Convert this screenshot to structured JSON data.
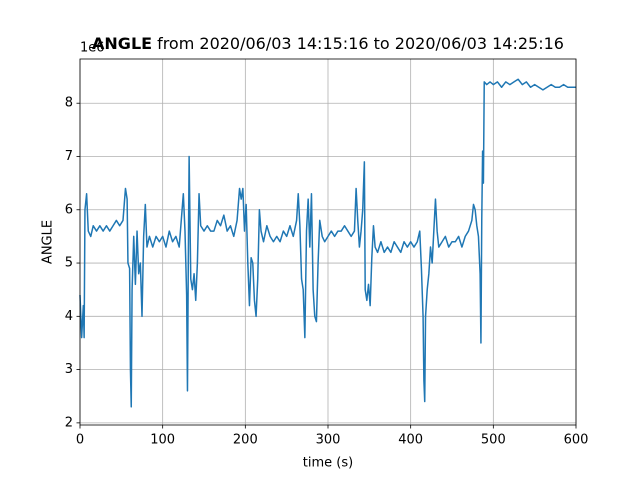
{
  "chart_data": {
    "type": "line",
    "title": [
      "ANGLE",
      "from 2020/06/03 14:15:16 to 2020/06/03 14:25:16"
    ],
    "y_offset_label": "1e6",
    "xlabel": "time (s)",
    "ylabel": "ANGLE",
    "xlim": [
      0,
      600
    ],
    "xticks": [
      0,
      100,
      200,
      300,
      400,
      500,
      600
    ],
    "ylim": [
      1.96,
      8.83
    ],
    "yticks": [
      2,
      3,
      4,
      5,
      6,
      7,
      8
    ],
    "grid": true,
    "x": [
      0,
      2,
      4,
      5,
      6,
      8,
      10,
      13,
      16,
      20,
      24,
      28,
      32,
      36,
      40,
      44,
      48,
      52,
      55,
      57,
      58,
      60,
      61,
      62,
      63,
      65,
      67,
      69,
      71,
      73,
      75,
      77,
      79,
      81,
      84,
      88,
      92,
      96,
      100,
      104,
      108,
      112,
      116,
      120,
      123,
      125,
      127,
      129,
      130,
      131,
      132,
      134,
      136,
      138,
      140,
      142,
      144,
      146,
      150,
      154,
      158,
      162,
      166,
      170,
      174,
      178,
      182,
      186,
      190,
      193,
      195,
      197,
      199,
      201,
      203,
      205,
      207,
      209,
      211,
      213,
      215,
      217,
      219,
      222,
      226,
      230,
      234,
      238,
      242,
      246,
      250,
      254,
      258,
      262,
      264,
      266,
      268,
      270,
      272,
      274,
      276,
      278,
      280,
      282,
      284,
      286,
      288,
      290,
      293,
      296,
      300,
      304,
      308,
      312,
      316,
      320,
      324,
      328,
      332,
      334,
      336,
      338,
      340,
      342,
      344,
      345,
      347,
      349,
      351,
      353,
      355,
      357,
      360,
      364,
      368,
      372,
      376,
      380,
      384,
      388,
      392,
      396,
      400,
      404,
      408,
      411,
      413,
      415,
      416,
      417,
      418,
      420,
      422,
      424,
      426,
      428,
      430,
      432,
      434,
      438,
      442,
      446,
      450,
      454,
      458,
      462,
      466,
      470,
      474,
      476,
      478,
      480,
      482,
      484,
      485,
      486,
      487,
      488,
      489,
      492,
      496,
      500,
      505,
      510,
      515,
      520,
      525,
      530,
      535,
      540,
      545,
      550,
      555,
      560,
      565,
      570,
      575,
      580,
      585,
      590,
      595,
      600
    ],
    "series": [
      {
        "name": "ANGLE",
        "color": "#1f77b4",
        "values": [
          4.4,
          3.6,
          4.2,
          3.6,
          6.0,
          6.3,
          5.6,
          5.5,
          5.7,
          5.6,
          5.7,
          5.6,
          5.7,
          5.6,
          5.7,
          5.8,
          5.7,
          5.8,
          6.4,
          6.2,
          5.0,
          4.9,
          3.0,
          2.3,
          4.5,
          5.5,
          4.6,
          5.6,
          4.8,
          5.0,
          4.0,
          5.5,
          6.1,
          5.3,
          5.5,
          5.3,
          5.5,
          5.4,
          5.5,
          5.3,
          5.6,
          5.4,
          5.5,
          5.3,
          5.9,
          6.3,
          5.6,
          4.4,
          2.6,
          5.0,
          7.0,
          4.7,
          4.5,
          4.8,
          4.3,
          5.0,
          6.3,
          5.7,
          5.6,
          5.7,
          5.6,
          5.6,
          5.8,
          5.7,
          5.9,
          5.6,
          5.7,
          5.5,
          5.8,
          6.4,
          6.2,
          6.4,
          5.6,
          6.1,
          5.0,
          4.2,
          5.1,
          5.0,
          4.3,
          4.0,
          4.7,
          6.0,
          5.6,
          5.4,
          5.7,
          5.5,
          5.4,
          5.5,
          5.4,
          5.6,
          5.5,
          5.7,
          5.5,
          5.8,
          6.3,
          5.7,
          4.7,
          4.5,
          3.6,
          5.6,
          6.2,
          5.3,
          6.3,
          4.5,
          4.0,
          3.9,
          5.0,
          5.8,
          5.5,
          5.4,
          5.5,
          5.6,
          5.5,
          5.6,
          5.6,
          5.7,
          5.6,
          5.5,
          5.6,
          6.4,
          5.8,
          5.3,
          5.6,
          6.0,
          6.9,
          4.5,
          4.3,
          4.6,
          4.2,
          5.1,
          5.7,
          5.3,
          5.2,
          5.4,
          5.2,
          5.3,
          5.2,
          5.4,
          5.3,
          5.2,
          5.4,
          5.3,
          5.4,
          5.3,
          5.4,
          5.6,
          4.9,
          4.0,
          2.8,
          2.4,
          4.0,
          4.5,
          4.8,
          5.3,
          5.0,
          5.6,
          6.2,
          5.6,
          5.3,
          5.4,
          5.5,
          5.3,
          5.4,
          5.4,
          5.5,
          5.3,
          5.5,
          5.6,
          5.8,
          6.1,
          6.0,
          5.7,
          5.5,
          4.8,
          3.5,
          5.8,
          7.1,
          6.5,
          8.4,
          8.35,
          8.4,
          8.35,
          8.4,
          8.3,
          8.4,
          8.35,
          8.4,
          8.45,
          8.35,
          8.4,
          8.3,
          8.35,
          8.3,
          8.25,
          8.3,
          8.35,
          8.3,
          8.3,
          8.35,
          8.3,
          8.3,
          8.3
        ]
      }
    ]
  }
}
